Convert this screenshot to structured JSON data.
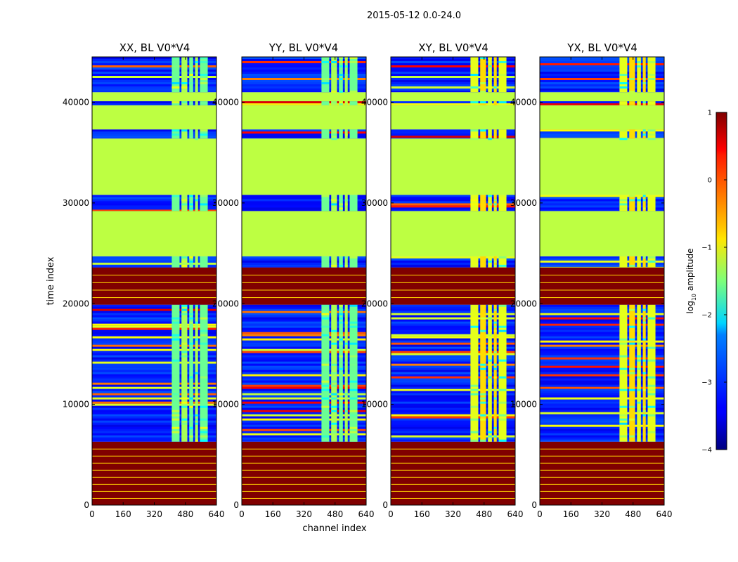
{
  "figure": {
    "suptitle": "2015-05-12 0.0-24.0"
  },
  "chart_data": {
    "type": "heatmap",
    "xlabel": "channel index",
    "ylabel": "time index",
    "x_range": [
      0,
      640
    ],
    "y_range": [
      0,
      44500
    ],
    "x_ticks": [
      0,
      160,
      320,
      480,
      640
    ],
    "y_ticks": [
      0,
      10000,
      20000,
      30000,
      40000
    ],
    "panels": [
      {
        "title": "XX, BL V0*V4",
        "pol": "XX"
      },
      {
        "title": "YY, BL V0*V4",
        "pol": "YY"
      },
      {
        "title": "XY, BL V0*V4",
        "pol": "XY"
      },
      {
        "title": "YX, BL V0*V4",
        "pol": "YX"
      }
    ],
    "colorbar": {
      "label_main": "log",
      "label_sub": "10",
      "label_rest": " amplitude",
      "range": [
        -4,
        1
      ],
      "ticks": [
        -4,
        -3,
        -2,
        -1,
        0,
        1
      ],
      "colormap": "jet"
    },
    "time_bands": [
      {
        "from": 0,
        "to": 6300,
        "level": 1.0,
        "kind": "flagged"
      },
      {
        "from": 6300,
        "to": 19900,
        "level": -3.3,
        "kind": "noise"
      },
      {
        "from": 19900,
        "to": 23600,
        "level": 1.0,
        "kind": "flagged"
      },
      {
        "from": 23600,
        "to": 24700,
        "level": -3.3,
        "kind": "noise"
      },
      {
        "from": 24700,
        "to": 29200,
        "level": -1.2,
        "kind": "flat"
      },
      {
        "from": 29200,
        "to": 30800,
        "level": -3.3,
        "kind": "noise"
      },
      {
        "from": 30800,
        "to": 36400,
        "level": -1.2,
        "kind": "flat"
      },
      {
        "from": 36400,
        "to": 37300,
        "level": -3.3,
        "kind": "noise"
      },
      {
        "from": 37300,
        "to": 39700,
        "level": -1.2,
        "kind": "flat"
      },
      {
        "from": 39700,
        "to": 40100,
        "level": -3.3,
        "kind": "noise"
      },
      {
        "from": 40100,
        "to": 41000,
        "level": -1.2,
        "kind": "flat"
      },
      {
        "from": 41000,
        "to": 44500,
        "level": -3.3,
        "kind": "noise"
      }
    ],
    "rfi_channel_ranges": [
      [
        410,
        450
      ],
      [
        460,
        490
      ],
      [
        500,
        520
      ],
      [
        530,
        545
      ],
      [
        555,
        595
      ]
    ]
  }
}
